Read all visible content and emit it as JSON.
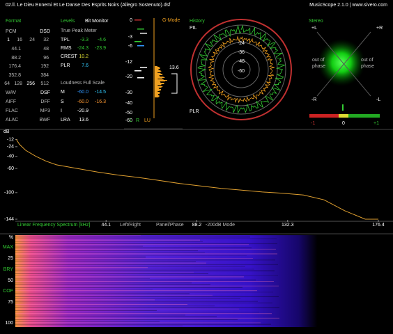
{
  "header": {
    "title": "02.ll. Le Dieu Ennemi Et Le Danse Des Esprits Noirs (Allegro Sostenuto).dsf",
    "app": "MusicScope 2.1.0 | www.sivero.com"
  },
  "format": {
    "title": "Format",
    "rows": [
      [
        "PCM",
        "DSD"
      ],
      [
        "1",
        "16",
        "24",
        "32"
      ],
      [
        "44.1",
        "48"
      ],
      [
        "88.2",
        "96"
      ],
      [
        "176.4",
        "192"
      ],
      [
        "352.8",
        "384"
      ],
      [
        "64",
        "128",
        "256",
        "512"
      ],
      [
        "WAV",
        "DSF"
      ],
      [
        "AIFF",
        "DFF"
      ],
      [
        "FLAC",
        "MP3"
      ],
      [
        "ALAC",
        "BWF"
      ]
    ]
  },
  "levels": {
    "title": "Levels",
    "subtitle": "Bit Monitor",
    "peak_title": "True Peak Meter",
    "peak_rows": [
      [
        "TPL",
        "-3.3",
        "-4.6"
      ],
      [
        "RMS",
        "-24.3",
        "-23.9"
      ],
      [
        "CREST",
        "10.2"
      ],
      [
        "PLR",
        "7.6"
      ]
    ],
    "loudness_title": "Loudness Full Scale",
    "loudness_rows": [
      [
        "M",
        "-60.0",
        "-14.5"
      ],
      [
        "S",
        "-60.0",
        "-16.3"
      ],
      [
        "I",
        "-20.9"
      ],
      [
        "LRA",
        "13.6"
      ]
    ]
  },
  "meter": {
    "mode": "G-Mode",
    "scale": [
      "0",
      "-3",
      "-6",
      "-12",
      "-20",
      "-30",
      "-40",
      "-50",
      "-60"
    ],
    "reading": "13.6",
    "channels": [
      "L",
      "R",
      "LU"
    ]
  },
  "history": {
    "title": "History",
    "top": "PIL",
    "bottom": "PLR",
    "rings": [
      "-24",
      "-36",
      "-48",
      "-60"
    ]
  },
  "stereo": {
    "title": "Stereo",
    "corners": [
      "+L",
      "+R",
      "-R",
      "-L"
    ],
    "out_of_phase": [
      "out of",
      "phase"
    ],
    "scale": [
      "-1",
      "0",
      "+1"
    ]
  },
  "spectrum": {
    "unit": "dB",
    "xlim": [
      0,
      176.4
    ],
    "ylim": [
      -144,
      0
    ],
    "xticks": [
      44.1,
      88.2,
      132.3,
      176.4
    ],
    "yticks": [
      -12,
      -24,
      -40,
      -60,
      -100,
      -144
    ],
    "x": [
      0.5,
      2,
      5,
      10,
      15,
      20,
      30,
      40,
      50,
      60,
      70,
      80,
      90,
      100,
      110,
      120,
      130,
      140,
      150,
      160,
      170,
      176.4
    ],
    "values": [
      -12,
      -20,
      -30,
      -40,
      -48,
      -54,
      -60,
      -66,
      -71,
      -75,
      -80,
      -85,
      -89,
      -93,
      -96,
      -99,
      -101,
      -104,
      -112,
      -130,
      -144,
      -144
    ],
    "color": "#e0a030",
    "caption": "Linear Frequency Spectrum [kHz]",
    "modes": [
      "Left/Right",
      "Panel/Phase",
      "-200dB Mode"
    ]
  },
  "spectrogram": {
    "scale": [
      "%",
      "MAX",
      "25",
      "BRY",
      "50",
      "COF",
      "75",
      "100"
    ]
  }
}
